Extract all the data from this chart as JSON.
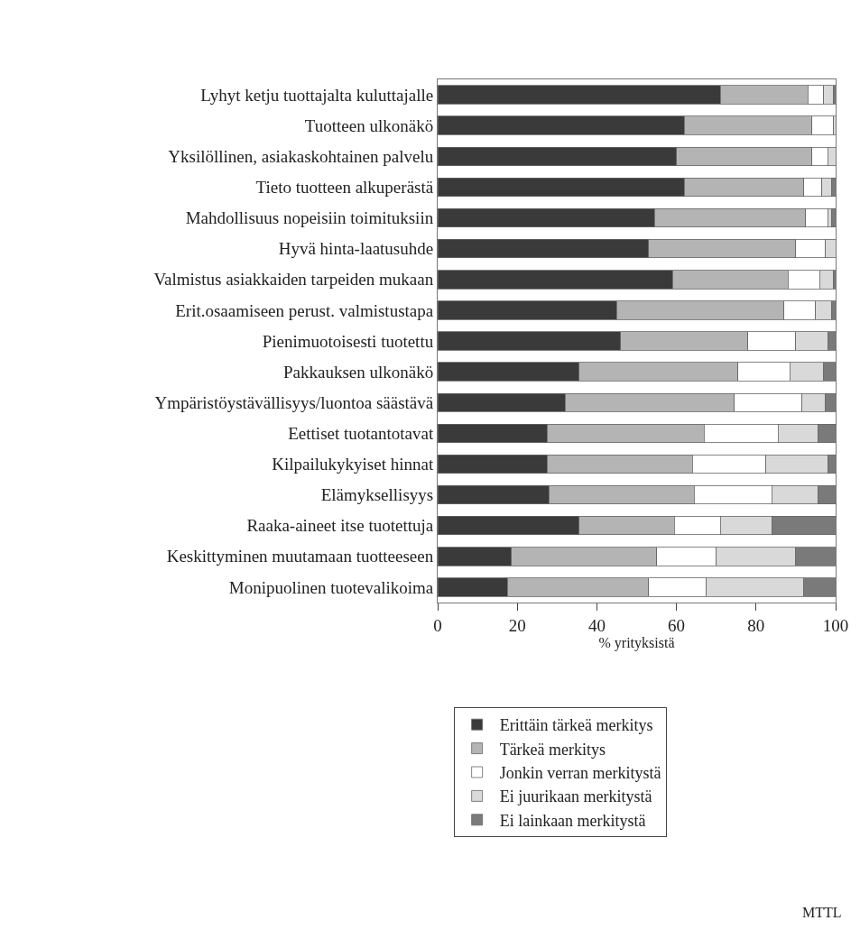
{
  "chart_data": {
    "type": "bar",
    "orientation": "horizontal",
    "stacked": true,
    "xlabel": "% yrityksistä",
    "categories": [
      "Lyhyt ketju tuottajalta kuluttajalle",
      "Tuotteen ulkonäkö",
      "Yksilöllinen, asiakaskohtainen palvelu",
      "Tieto tuotteen alkuperästä",
      "Mahdollisuus nopeisiin toimituksiin",
      "Hyvä hinta-laatusuhde",
      "Valmistus asiakkaiden tarpeiden mukaan",
      "Erit.osaamiseen perust. valmistustapa",
      "Pienimuotoisesti tuotettu",
      "Pakkauksen ulkonäkö",
      "Ympäristöystävällisyys/luontoa säästävä",
      "Eettiset tuotantotavat",
      "Kilpailukykyiset hinnat",
      "Elämyksellisyys",
      "Raaka-aineet itse tuotettuja",
      "Keskittyminen muutamaan tuotteeseen",
      "Monipuolinen tuotevalikoima"
    ],
    "series": [
      {
        "name": "Erittäin tärkeä merkitys",
        "color": "#3a3a3a",
        "values": [
          71,
          62,
          60,
          62,
          54.5,
          53,
          59,
          45,
          46,
          35.5,
          32,
          27.5,
          27.5,
          28,
          35.5,
          18.5,
          17.5
        ]
      },
      {
        "name": "Tärkeä merkitys",
        "color": "#b4b4b4",
        "values": [
          22,
          32,
          34,
          30,
          38,
          37,
          29,
          42,
          32,
          40,
          42.5,
          39.5,
          36.5,
          36.5,
          24,
          36.5,
          35.5
        ]
      },
      {
        "name": "Jonkin verran merkitystä",
        "color": "#ffffff",
        "values": [
          4,
          5.5,
          4,
          4.5,
          5.5,
          7.5,
          8,
          8,
          12,
          13,
          17,
          18.5,
          18.5,
          19.5,
          11.5,
          15,
          14.5
        ]
      },
      {
        "name": "Ei juurikaan merkitystä",
        "color": "#d9d9d9",
        "values": [
          2.5,
          0.5,
          2,
          2.5,
          1,
          2.5,
          3.5,
          4,
          8,
          8.5,
          6,
          10,
          15.5,
          11.5,
          13,
          20,
          24.5
        ]
      },
      {
        "name": "Ei lainkaan merkitystä",
        "color": "#7a7a7a",
        "values": [
          0.5,
          0,
          0,
          1,
          1,
          0,
          0.5,
          1,
          2,
          3,
          2.5,
          4.5,
          2,
          4.5,
          16,
          10,
          8
        ]
      }
    ],
    "xlim": [
      0,
      100
    ],
    "xticks": [
      0,
      20,
      40,
      60,
      80,
      100
    ],
    "grid": false,
    "legend": "bottom",
    "annotations": [
      "MTTL"
    ]
  }
}
